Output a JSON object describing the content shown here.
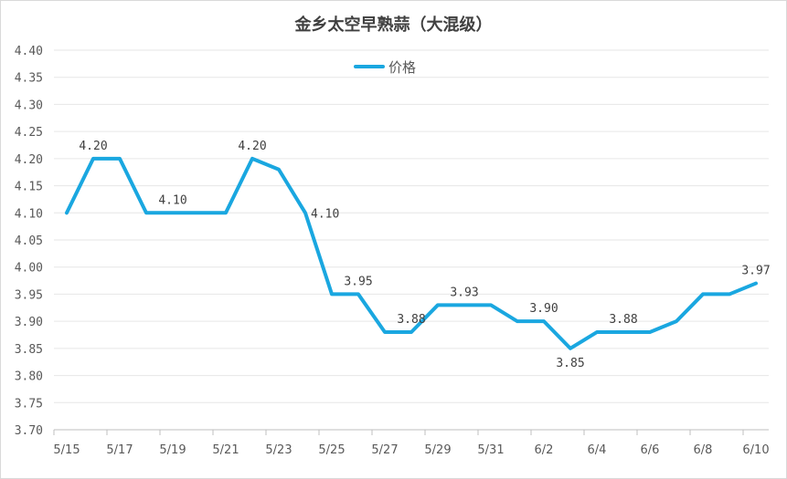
{
  "chart_data": {
    "type": "line",
    "title": "金乡太空早熟蒜（大混级）",
    "xlabel": "",
    "ylabel": "",
    "ylim": [
      3.7,
      4.4
    ],
    "yticks": [
      "3.70",
      "3.75",
      "3.80",
      "3.85",
      "3.90",
      "3.95",
      "4.00",
      "4.05",
      "4.10",
      "4.15",
      "4.20",
      "4.25",
      "4.30",
      "4.35",
      "4.40"
    ],
    "categories": [
      "5/15",
      "5/16",
      "5/17",
      "5/18",
      "5/19",
      "5/20",
      "5/21",
      "5/22",
      "5/23",
      "5/24",
      "5/25",
      "5/26",
      "5/27",
      "5/28",
      "5/29",
      "5/30",
      "5/31",
      "6/1",
      "6/2",
      "6/3",
      "6/4",
      "6/5",
      "6/6",
      "6/7",
      "6/8",
      "6/9",
      "6/10"
    ],
    "xtick_labels": [
      "5/15",
      "",
      "5/17",
      "",
      "5/19",
      "",
      "5/21",
      "",
      "5/23",
      "",
      "5/25",
      "",
      "5/27",
      "",
      "5/29",
      "",
      "5/31",
      "",
      "6/2",
      "",
      "6/4",
      "",
      "6/6",
      "",
      "6/8",
      "",
      "6/10"
    ],
    "series": [
      {
        "name": "价格",
        "color": "#1aa7e0",
        "values": [
          4.1,
          4.2,
          4.2,
          4.1,
          4.1,
          4.1,
          4.1,
          4.2,
          4.18,
          4.1,
          3.95,
          3.95,
          3.88,
          3.88,
          3.93,
          3.93,
          3.93,
          3.9,
          3.9,
          3.85,
          3.88,
          3.88,
          3.88,
          3.9,
          3.95,
          3.95,
          3.97
        ]
      }
    ],
    "data_labels": [
      {
        "index": 1,
        "text": "4.20",
        "pos": "above"
      },
      {
        "index": 4,
        "text": "4.10",
        "pos": "above"
      },
      {
        "index": 7,
        "text": "4.20",
        "pos": "above"
      },
      {
        "index": 9,
        "text": "4.10",
        "pos": "right"
      },
      {
        "index": 11,
        "text": "3.95",
        "pos": "above"
      },
      {
        "index": 13,
        "text": "3.88",
        "pos": "above"
      },
      {
        "index": 15,
        "text": "3.93",
        "pos": "above"
      },
      {
        "index": 18,
        "text": "3.90",
        "pos": "above"
      },
      {
        "index": 19,
        "text": "3.85",
        "pos": "below"
      },
      {
        "index": 21,
        "text": "3.88",
        "pos": "above"
      },
      {
        "index": 26,
        "text": "3.97",
        "pos": "above"
      }
    ],
    "legend": {
      "label": "价格",
      "placement": "top-center"
    },
    "grid": true
  }
}
